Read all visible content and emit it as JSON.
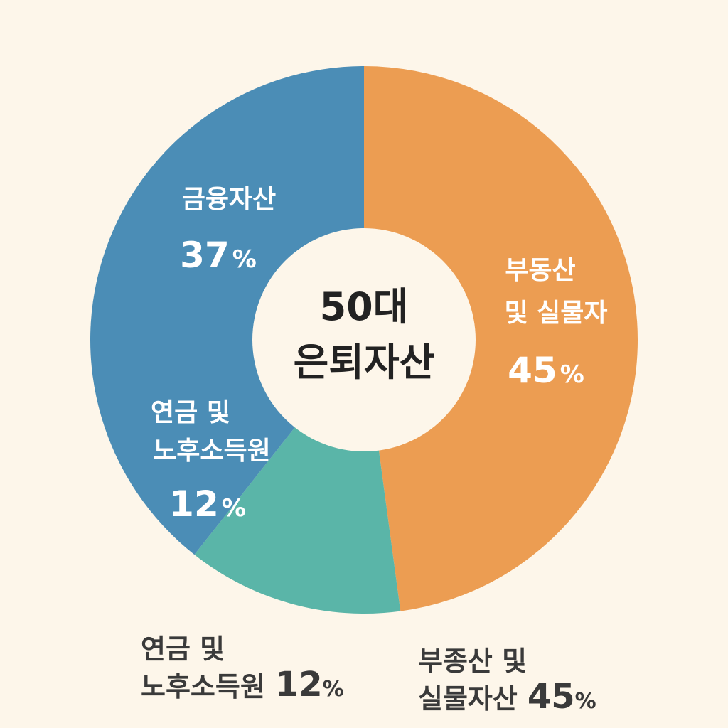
{
  "chart_data": {
    "type": "pie",
    "style": "donut",
    "center_label": [
      "50대",
      "은퇴자산"
    ],
    "slices": [
      {
        "label_lines": [
          "부동산",
          "및 실물자"
        ],
        "value": 45,
        "color": "#ec9d52"
      },
      {
        "label_lines": [
          "연금 및",
          "노후소득원"
        ],
        "value": 12,
        "color": "#5ab5a8"
      },
      {
        "label_lines": [
          "금융자산"
        ],
        "value": 37,
        "color": "#4b8db6"
      }
    ],
    "percent_sign": "%"
  },
  "legend": {
    "pension": {
      "lines": [
        "연금  및",
        "노후소득원"
      ],
      "value": "12",
      "unit": "%"
    },
    "realestate": {
      "lines": [
        "부종산  및",
        "실물자산"
      ],
      "value": "45",
      "unit": "%"
    }
  }
}
